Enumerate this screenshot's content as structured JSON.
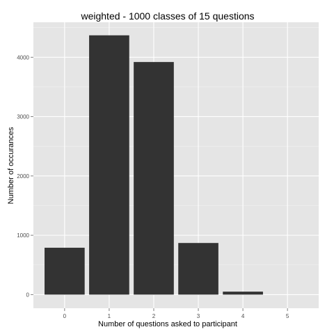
{
  "chart_data": {
    "type": "bar",
    "title": "weighted - 1000 classes of 15 questions",
    "xlabel": "Number of questions asked to participant",
    "ylabel": "Number of occurances",
    "categories": [
      "0",
      "1",
      "2",
      "3",
      "4",
      "5"
    ],
    "values": [
      790,
      4370,
      3920,
      870,
      50,
      0
    ],
    "xlim": [
      -0.7,
      5.7
    ],
    "ylim": [
      -230,
      4590
    ],
    "yticks": [
      0,
      1000,
      2000,
      3000,
      4000
    ],
    "ytick_labels": [
      "0",
      "1000",
      "2000",
      "3000",
      "4000"
    ],
    "grid": true,
    "legend": "none",
    "colors": {
      "panel": "#e5e5e5",
      "grid_major": "#ffffff",
      "grid_minor": "#f2f2f2",
      "bar": "#333333",
      "tick_text": "#4d4d4d",
      "tick_mark": "#7f7f7f"
    }
  }
}
